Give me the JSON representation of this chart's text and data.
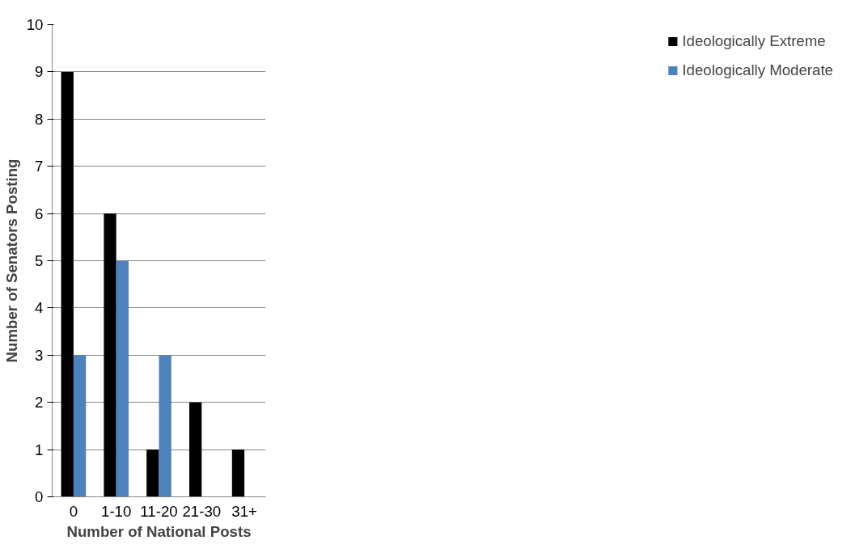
{
  "chart_data": {
    "type": "bar",
    "xlabel": "Number of National Posts",
    "ylabel": "Number of Senators Posting",
    "categories": [
      "0",
      "1-10",
      "11-20",
      "21-30",
      "31+"
    ],
    "series": [
      {
        "name": "Ideologically Extreme",
        "color": "#000000",
        "values": [
          9,
          6,
          1,
          2,
          1
        ]
      },
      {
        "name": "Ideologically Moderate",
        "color": "#4f81bd",
        "values": [
          3,
          5,
          3,
          0,
          0
        ]
      }
    ],
    "ylim": [
      0,
      10
    ],
    "yticks": [
      0,
      1,
      2,
      3,
      4,
      5,
      6,
      7,
      8,
      9,
      10
    ],
    "grid": "y",
    "legend": "right"
  }
}
